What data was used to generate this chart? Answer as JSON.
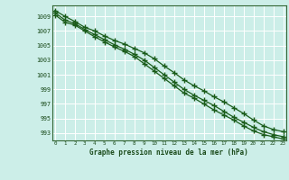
{
  "title": "Graphe pression niveau de la mer (hPa)",
  "background_color": "#cceee8",
  "grid_color": "#ffffff",
  "line_color": "#1a5c1a",
  "marker_color": "#1a5c1a",
  "xlim": [
    -0.3,
    23.3
  ],
  "ylim": [
    992.0,
    1010.5
  ],
  "yticks": [
    993,
    995,
    997,
    999,
    1001,
    1003,
    1005,
    1007,
    1009
  ],
  "xticks": [
    0,
    1,
    2,
    3,
    4,
    5,
    6,
    7,
    8,
    9,
    10,
    11,
    12,
    13,
    14,
    15,
    16,
    17,
    18,
    19,
    20,
    21,
    22,
    23
  ],
  "series": [
    [
      1009.8,
      1009.0,
      1008.3,
      1007.5,
      1007.0,
      1006.3,
      1005.7,
      1005.2,
      1004.6,
      1004.0,
      1003.2,
      1002.2,
      1001.3,
      1000.3,
      999.5,
      998.8,
      998.0,
      997.3,
      996.5,
      995.7,
      994.8,
      994.0,
      993.5,
      993.2
    ],
    [
      1009.5,
      1008.5,
      1008.0,
      1007.2,
      1006.5,
      1005.8,
      1005.1,
      1004.5,
      1003.8,
      1003.0,
      1002.0,
      1001.0,
      1000.0,
      999.0,
      998.2,
      997.5,
      996.8,
      996.0,
      995.2,
      994.5,
      993.8,
      993.2,
      992.8,
      992.5
    ],
    [
      1009.2,
      1008.2,
      1007.8,
      1007.0,
      1006.2,
      1005.5,
      1004.8,
      1004.2,
      1003.5,
      1002.5,
      1001.5,
      1000.5,
      999.5,
      998.5,
      997.8,
      997.0,
      996.2,
      995.5,
      994.8,
      994.0,
      993.3,
      992.8,
      992.5,
      992.2
    ]
  ]
}
